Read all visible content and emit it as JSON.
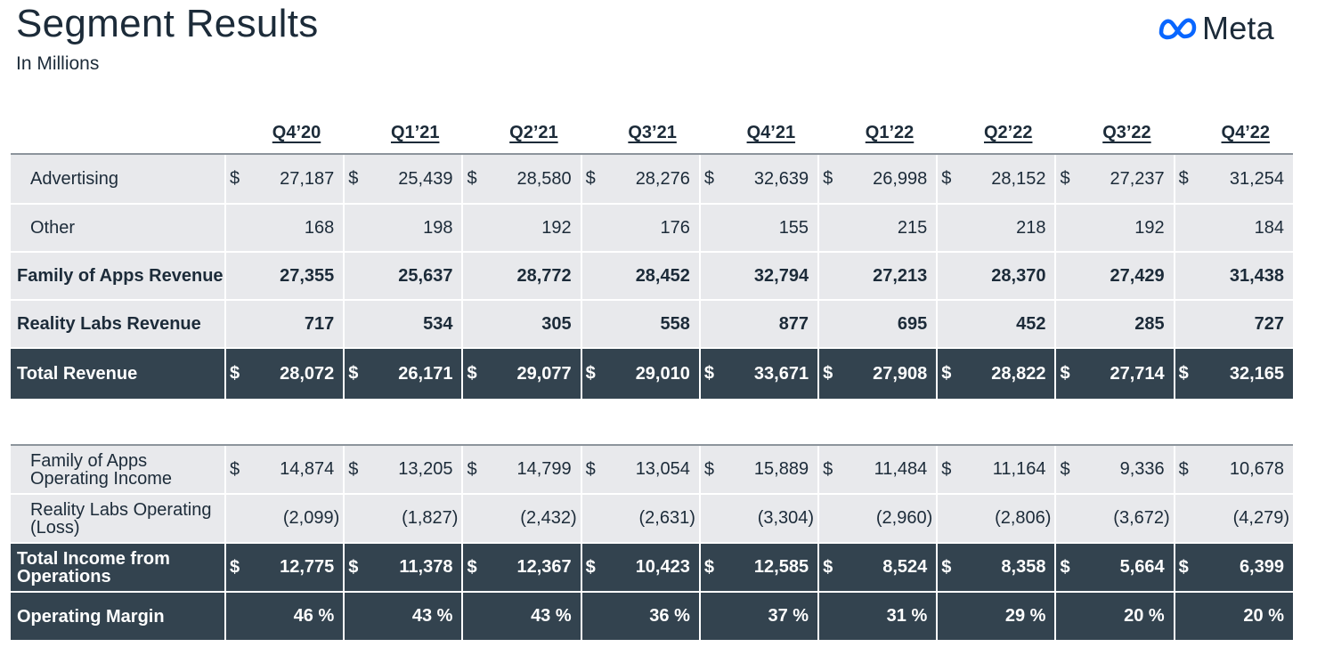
{
  "header": {
    "title": "Segment Results",
    "subtitle": "In Millions",
    "logo_text": "Meta"
  },
  "quarters": [
    "Q4’20",
    "Q1’21",
    "Q2’21",
    "Q3’21",
    "Q4’21",
    "Q1’22",
    "Q2’22",
    "Q3’22",
    "Q4’22"
  ],
  "revenue_table": {
    "rows": [
      {
        "label": "Advertising",
        "style": "light",
        "currency": true,
        "values": [
          "27,187",
          "25,439",
          "28,580",
          "28,276",
          "32,639",
          "26,998",
          "28,152",
          "27,237",
          "31,254"
        ]
      },
      {
        "label": "Other",
        "style": "light",
        "currency": false,
        "values": [
          "168",
          "198",
          "192",
          "176",
          "155",
          "215",
          "218",
          "192",
          "184"
        ]
      },
      {
        "label": "Family of Apps Revenue",
        "style": "light-bold",
        "currency": false,
        "values": [
          "27,355",
          "25,637",
          "28,772",
          "28,452",
          "32,794",
          "27,213",
          "28,370",
          "27,429",
          "31,438"
        ]
      },
      {
        "label": "Reality Labs Revenue",
        "style": "light-bold",
        "currency": false,
        "values": [
          "717",
          "534",
          "305",
          "558",
          "877",
          "695",
          "452",
          "285",
          "727"
        ]
      },
      {
        "label": "Total Revenue",
        "style": "dark",
        "currency": true,
        "values": [
          "28,072",
          "26,171",
          "29,077",
          "29,010",
          "33,671",
          "27,908",
          "28,822",
          "27,714",
          "32,165"
        ]
      }
    ]
  },
  "income_table": {
    "rows": [
      {
        "label": "Family of Apps Operating Income",
        "style": "light",
        "currency": true,
        "values": [
          "14,874",
          "13,205",
          "14,799",
          "13,054",
          "15,889",
          "11,484",
          "11,164",
          "9,336",
          "10,678"
        ]
      },
      {
        "label": "Reality Labs Operating (Loss)",
        "style": "light",
        "currency": false,
        "values": [
          "(2,099)",
          "(1,827)",
          "(2,432)",
          "(2,631)",
          "(3,304)",
          "(2,960)",
          "(2,806)",
          "(3,672)",
          "(4,279)"
        ]
      },
      {
        "label": "Total Income from Operations",
        "style": "dark",
        "currency": true,
        "values": [
          "12,775",
          "11,378",
          "12,367",
          "10,423",
          "12,585",
          "8,524",
          "8,358",
          "5,664",
          "6,399"
        ]
      },
      {
        "label": "Operating Margin",
        "style": "dark",
        "currency": false,
        "values": [
          "46 %",
          "43 %",
          "43 %",
          "36 %",
          "37 %",
          "31 %",
          "29 %",
          "20 %",
          "20 %"
        ]
      }
    ]
  },
  "currency_symbol": "$",
  "colors": {
    "dark_row": "#33434f",
    "light_row": "#e8e9ec",
    "text": "#1c2b39",
    "meta_blue": "#0866ff"
  }
}
